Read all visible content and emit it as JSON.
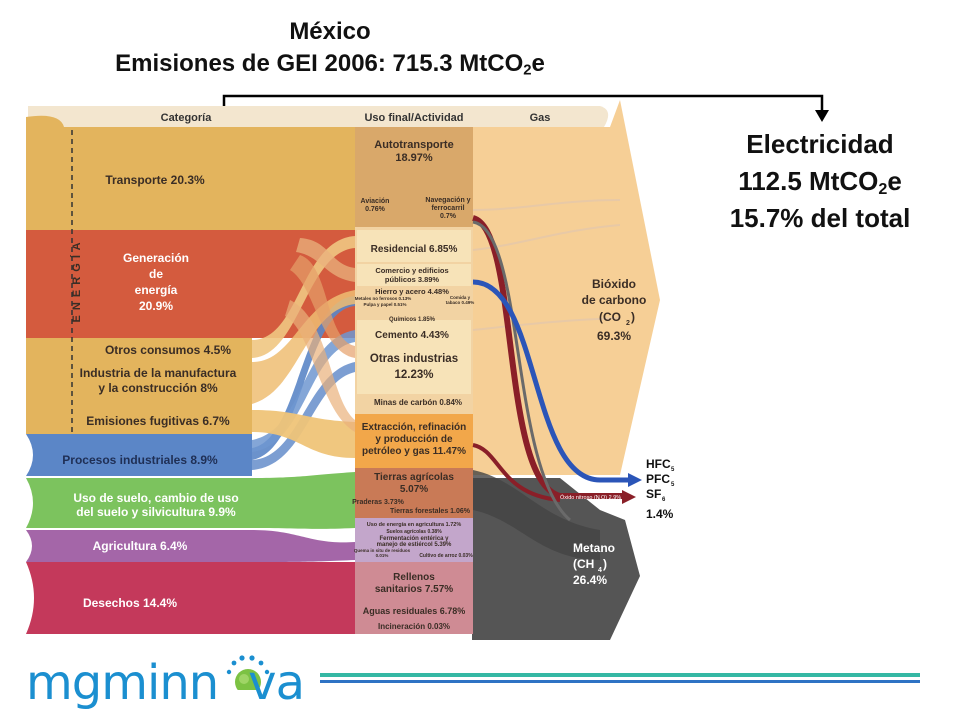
{
  "title": {
    "line1": "México",
    "line2_prefix": "Emisiones de GEI 2006: 715.3 MtCO",
    "line2_sub": "2",
    "line2_suffix": "e"
  },
  "electricity": {
    "label": "Electricidad",
    "value_prefix": "112.5 MtCO",
    "value_sub": "2",
    "value_suffix": "e",
    "share": "15.7% del total"
  },
  "headers": {
    "category": "Categoría",
    "end_use": "Uso final/Actividad",
    "gas": "Gas"
  },
  "energy_bracket": "E N E R G Í A",
  "categories": [
    {
      "lines": [
        "Transporte 20.3%"
      ],
      "color": "#e3b45d"
    },
    {
      "lines": [
        "Generación",
        "de",
        "energía",
        "20.9%"
      ],
      "color": "#d45b3e"
    },
    {
      "lines": [
        "Otros consumos 4.5%"
      ],
      "color": "#e3b45d"
    },
    {
      "lines": [
        "Industria de la manufactura",
        "y la construcción 8%"
      ],
      "color": "#e3b45d"
    },
    {
      "lines": [
        "Emisiones fugitivas 6.7%"
      ],
      "color": "#e3b45d"
    },
    {
      "lines": [
        "Procesos industriales 8.9%"
      ],
      "color": "#5b86c7"
    },
    {
      "lines": [
        "Uso de suelo, cambio de uso",
        "del suelo y silvicultura 9.9%"
      ],
      "color": "#7cc35e"
    },
    {
      "lines": [
        "Agricultura 6.4%"
      ],
      "color": "#a466a8"
    },
    {
      "lines": [
        "Desechos 14.4%"
      ],
      "color": "#c4395b"
    }
  ],
  "activities": [
    {
      "lines": [
        "Autotransporte",
        "18.97%"
      ],
      "size": "big"
    },
    {
      "lines": [
        "Aviación",
        "0.76%"
      ],
      "size": "tiny"
    },
    {
      "lines": [
        "Navegación y",
        "ferrocarril",
        "0.7%"
      ],
      "size": "tiny"
    },
    {
      "lines": [
        "Residencial 6.85%"
      ],
      "size": "mid"
    },
    {
      "lines": [
        "Comercio y edificios",
        "públicos 3.89%"
      ],
      "size": "small"
    },
    {
      "lines": [
        "Hierro y acero 4.48%"
      ],
      "size": "small"
    },
    {
      "lines": [
        "Metales no ferrosos 0.13%"
      ],
      "size": "micro"
    },
    {
      "lines": [
        "Pulpa y papel 0.51%"
      ],
      "size": "micro"
    },
    {
      "lines": [
        "Comida y",
        "tabaco 0.49%"
      ],
      "size": "micro"
    },
    {
      "lines": [
        "Químicos 1.85%"
      ],
      "size": "tiny"
    },
    {
      "lines": [
        "Cemento 4.43%"
      ],
      "size": "mid"
    },
    {
      "lines": [
        "Otras industrias",
        "12.23%"
      ],
      "size": "big"
    },
    {
      "lines": [
        "Minas de carbón 0.84%"
      ],
      "size": "tiny"
    },
    {
      "lines": [
        "Extracción, refinación",
        "y producción de",
        "petróleo y gas 11.47%"
      ],
      "size": "mid"
    },
    {
      "lines": [
        "Tierras agrícolas",
        "5.07%"
      ],
      "size": "mid"
    },
    {
      "lines": [
        "Praderas 3.73%"
      ],
      "size": "tiny"
    },
    {
      "lines": [
        "Tierras forestales 1.06%"
      ],
      "size": "tiny"
    },
    {
      "lines": [
        "Uso de energía en agricultura 1.72%"
      ],
      "size": "micro"
    },
    {
      "lines": [
        "Suelos agrícolas 0.38%"
      ],
      "size": "micro"
    },
    {
      "lines": [
        "Fermentación entérica y",
        "manejo de estiércol 5.39%"
      ],
      "size": "micro"
    },
    {
      "lines": [
        "Quema in situ de residuos",
        "0.01%"
      ],
      "size": "micro"
    },
    {
      "lines": [
        "Cultivo de arroz 0.03%"
      ],
      "size": "micro"
    },
    {
      "lines": [
        "Rellenos",
        "sanitarios 7.57%"
      ],
      "size": "mid"
    },
    {
      "lines": [
        "Aguas residuales 6.78%"
      ],
      "size": "small"
    },
    {
      "lines": [
        "Incineración 0.03%"
      ],
      "size": "tiny"
    }
  ],
  "gases": {
    "co2": {
      "lines": [
        "Bióxido",
        "de carbono",
        "(CO",
        "69.3%"
      ],
      "sub": "2",
      "color": "#f6cf96"
    },
    "n2o_label": "Óxido nitroso (N",
    "n2o_sub": "2",
    "n2o_suffix": "O) 2.9%",
    "hfc": [
      "HFC",
      "PFC",
      "SF",
      "1.4%"
    ],
    "hfc_subs": [
      "5",
      "5",
      "6"
    ],
    "ch4": {
      "lines": [
        "Metano",
        "(CH",
        "26.4%"
      ],
      "sub": "4",
      "color": "#555555"
    }
  },
  "logo": {
    "part1": "mgminn",
    "part2": "va"
  },
  "colors": {
    "energy": "#e3b45d",
    "generation": "#d45b3e",
    "industrial": "#5b86c7",
    "land_use": "#7cc35e",
    "agriculture": "#a466a8",
    "waste": "#c4395b",
    "co2": "#f6cf96",
    "ch4": "#555555",
    "n2o": "#8a1f28",
    "hfc": "#2b55b8"
  }
}
